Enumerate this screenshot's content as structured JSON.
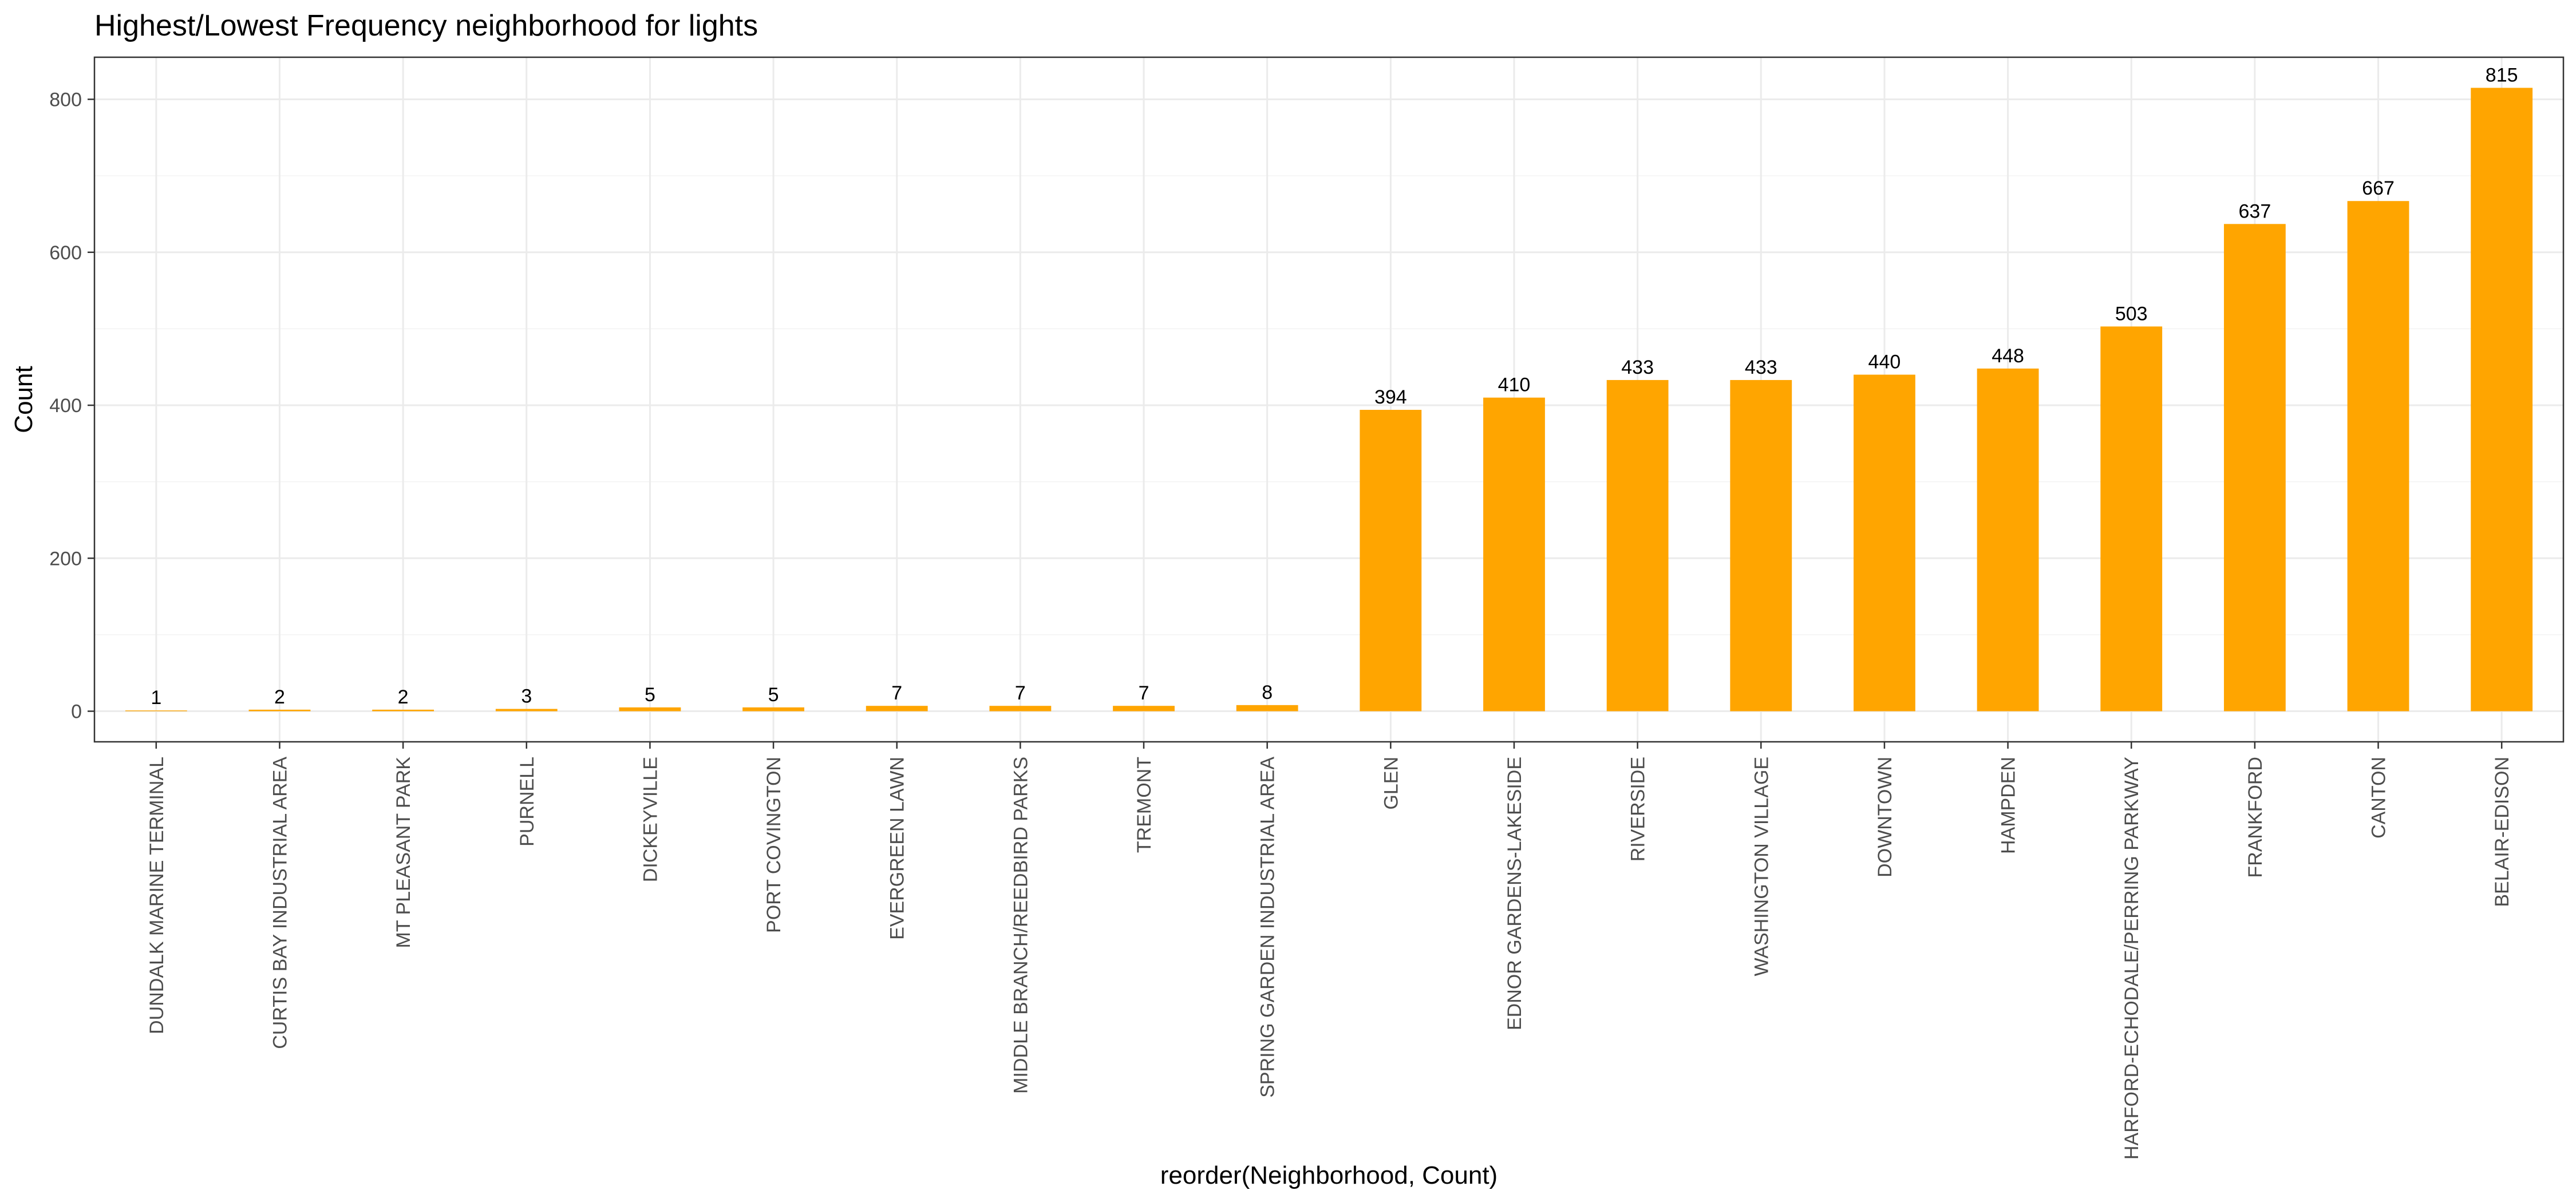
{
  "chart_data": {
    "type": "bar",
    "title": "Highest/Lowest Frequency neighborhood for lights",
    "xlabel": "reorder(Neighborhood, Count)",
    "ylabel": "Count",
    "categories": [
      "DUNDALK MARINE TERMINAL",
      "CURTIS BAY INDUSTRIAL AREA",
      "MT PLEASANT PARK",
      "PURNELL",
      "DICKEYVILLE",
      "PORT COVINGTON",
      "EVERGREEN LAWN",
      "MIDDLE BRANCH/REEDBIRD PARKS",
      "TREMONT",
      "SPRING GARDEN INDUSTRIAL AREA",
      "GLEN",
      "EDNOR GARDENS-LAKESIDE",
      "RIVERSIDE",
      "WASHINGTON VILLAGE",
      "DOWNTOWN",
      "HAMPDEN",
      "HARFORD-ECHODALE/PERRING PARKWAY",
      "FRANKFORD",
      "CANTON",
      "BELAIR-EDISON"
    ],
    "values": [
      1,
      2,
      2,
      3,
      5,
      5,
      7,
      7,
      7,
      8,
      394,
      410,
      433,
      433,
      440,
      448,
      503,
      637,
      667,
      815
    ],
    "ylim": [
      -40,
      855
    ],
    "yticks": [
      0,
      200,
      400,
      600,
      800
    ],
    "bar_color": "#FFA500",
    "grid": true
  }
}
